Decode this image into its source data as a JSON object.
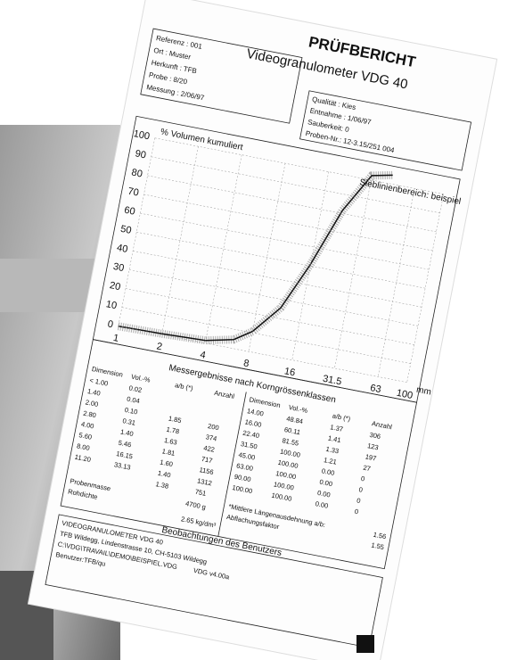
{
  "header": {
    "title": "PRÜFBERICHT",
    "subtitle": "Videogranulometer VDG 40"
  },
  "sample_info": [
    "Referenz : 001",
    "Ort : Muster",
    "Herkunft : TFB",
    "Probe : 8/20",
    "Messung : 2/06/97"
  ],
  "quality_info": [
    "Qualität : Kies",
    "Entnahme : 1/06/97",
    "Sauberkeit: 0",
    "Proben-Nr.: 12-3.15/251 004"
  ],
  "chart": {
    "y_axis_label": "% Volumen kumuliert",
    "range_label": "Sieblinienbereich: beispiel",
    "y_labels": [
      "100",
      "90",
      "80",
      "70",
      "60",
      "50",
      "40",
      "30",
      "20",
      "10",
      "0"
    ],
    "x_labels": [
      "1",
      "2",
      "4",
      "8",
      "16",
      "31.5",
      "63",
      "100"
    ],
    "x_unit": "mm"
  },
  "results": {
    "title": "Messergebnisse nach Korngrössenklassen",
    "columns": [
      "Dimension",
      "Vol.-%",
      "a/b (*)",
      "Anzahl"
    ],
    "left_rows": [
      {
        "dimension": "< 1.00",
        "vol": "0.02"
      },
      {
        "dimension": "1.40",
        "vol": "0.04"
      },
      {
        "dimension": "2.00",
        "vol": "0.10",
        "ab": "1.85",
        "anzahl": "200"
      },
      {
        "dimension": "2.80",
        "vol": "0.31",
        "ab": "1.78",
        "anzahl": "374"
      },
      {
        "dimension": "4.00",
        "vol": "1.40",
        "ab": "1.63",
        "anzahl": "422"
      },
      {
        "dimension": "5.60",
        "vol": "5.46",
        "ab": "1.81",
        "anzahl": "717"
      },
      {
        "dimension": "8.00",
        "vol": "16.15",
        "ab": "1.60",
        "anzahl": "1156"
      },
      {
        "dimension": "11.20",
        "vol": "33.13",
        "ab": "1.40",
        "anzahl": "1312"
      },
      {
        "ab": "1.38",
        "anzahl": "751"
      }
    ],
    "right_rows": [
      {
        "dimension": "14.00",
        "vol": "48.84",
        "ab": "1.37",
        "anzahl": "306"
      },
      {
        "dimension": "16.00",
        "vol": "60.11",
        "ab": "1.41",
        "anzahl": "123"
      },
      {
        "dimension": "22.40",
        "vol": "81.55",
        "ab": "1.33",
        "anzahl": "197"
      },
      {
        "dimension": "31.50",
        "vol": "100.00",
        "ab": "1.21",
        "anzahl": "27"
      },
      {
        "dimension": "45.00",
        "vol": "100.00",
        "ab": "0.00",
        "anzahl": "0"
      },
      {
        "dimension": "63.00",
        "vol": "100.00",
        "ab": "0.00",
        "anzahl": "0"
      },
      {
        "dimension": "90.00",
        "vol": "100.00",
        "ab": "0.00",
        "anzahl": "0"
      },
      {
        "dimension": "100.00",
        "vol": "100.00",
        "ab": "0.00",
        "anzahl": "0"
      }
    ],
    "probenmasse": {
      "label": "Probenmasse",
      "value": "4700 g"
    },
    "rohdichte": {
      "label": "Rohdichte",
      "value": "2.65 kg/dm³"
    },
    "notes": [
      {
        "label": "*Mittlere Längenausdehnung a/b:",
        "value": "1.56"
      },
      {
        "label": "Abflachungsfaktor",
        "value": "1.55"
      }
    ]
  },
  "observations": {
    "title": "Beobachtungen des Benutzers"
  },
  "footer": {
    "lines": [
      "VIDEOGRANULOMETER VDG 40",
      "TFB Wildegg, Lindenstrasse 10, CH-5103 Wildegg",
      "C:\\VDG\\TRAVAIL\\DEMO\\BEISPIEL.VDG",
      "Benutzer:TFB/qu"
    ],
    "version": "VDG v4.00a"
  }
}
